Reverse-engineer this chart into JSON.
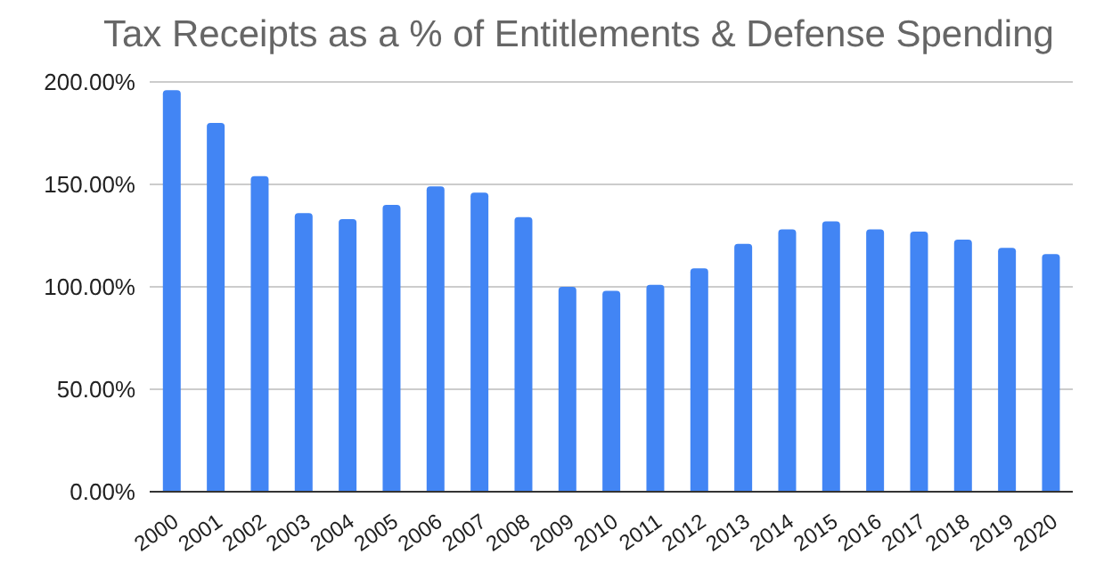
{
  "chart_data": {
    "type": "bar",
    "title": "Tax Receipts as a % of Entitlements & Defense Spending",
    "categories": [
      "2000",
      "2001",
      "2002",
      "2003",
      "2004",
      "2005",
      "2006",
      "2007",
      "2008",
      "2009",
      "2010",
      "2011",
      "2012",
      "2013",
      "2014",
      "2015",
      "2016",
      "2017",
      "2018",
      "2019",
      "2020"
    ],
    "values": [
      196,
      180,
      154,
      136,
      133,
      140,
      149,
      146,
      134,
      100,
      98,
      101,
      109,
      121,
      128,
      132,
      128,
      127,
      123,
      119,
      116
    ],
    "color": "#4285f4",
    "ylim": [
      0,
      200
    ],
    "yticks": [
      {
        "value": 0,
        "label": "0.00%"
      },
      {
        "value": 50,
        "label": "50.00%"
      },
      {
        "value": 100,
        "label": "100.00%"
      },
      {
        "value": 150,
        "label": "150.00%"
      },
      {
        "value": 200,
        "label": "200.00%"
      }
    ],
    "grid": "y"
  }
}
